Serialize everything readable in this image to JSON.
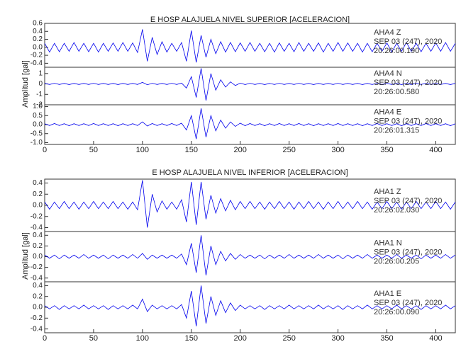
{
  "chart_data": [
    {
      "type": "line",
      "title": "E HOSP ALAJUELA NIVEL SUPERIOR [ACELERACION]",
      "ylabel": "Amplitud [gal]",
      "xlim": [
        0,
        420
      ],
      "xticks": [
        0,
        50,
        100,
        150,
        200,
        250,
        300,
        350,
        400
      ],
      "x": [
        0,
        5,
        10,
        15,
        20,
        25,
        30,
        35,
        40,
        45,
        50,
        55,
        60,
        65,
        70,
        75,
        80,
        85,
        90,
        95,
        100,
        105,
        110,
        115,
        120,
        125,
        130,
        135,
        140,
        145,
        150,
        155,
        160,
        165,
        170,
        175,
        180,
        185,
        190,
        195,
        200,
        205,
        210,
        215,
        220,
        225,
        230,
        235,
        240,
        245,
        250,
        255,
        260,
        265,
        270,
        275,
        280,
        285,
        290,
        295,
        300,
        305,
        310,
        315,
        320,
        325,
        330,
        335,
        340,
        345,
        350,
        355,
        360,
        365,
        370,
        375,
        380,
        385,
        390,
        395,
        400,
        405,
        410,
        415,
        420
      ],
      "series": [
        {
          "name": "AHA4 Z",
          "date": "SEP 03 (247), 2020",
          "time": "20:26:00.190",
          "color": "#0000ee",
          "ylim": [
            -0.5,
            0.6
          ],
          "yticks": [
            0.6,
            0.4,
            0.2,
            {
              "value": 0,
              "label": "0.0"
            },
            -0.2,
            -0.4
          ],
          "values": [
            0.1,
            -0.12,
            0.1,
            -0.11,
            0.1,
            -0.1,
            0.12,
            -0.1,
            0.1,
            -0.11,
            0.1,
            -0.12,
            0.1,
            -0.1,
            0.11,
            -0.1,
            0.12,
            -0.1,
            0.11,
            -0.13,
            0.45,
            -0.35,
            0.25,
            -0.18,
            0.14,
            -0.12,
            0.1,
            -0.1,
            0.12,
            -0.35,
            0.42,
            -0.38,
            0.3,
            -0.25,
            0.2,
            -0.16,
            0.14,
            -0.12,
            0.12,
            -0.11,
            0.11,
            -0.1,
            0.12,
            -0.1,
            0.1,
            -0.11,
            0.1,
            -0.12,
            0.11,
            -0.1,
            0.1,
            -0.11,
            0.12,
            -0.1,
            0.1,
            -0.1,
            0.11,
            -0.12,
            0.1,
            -0.1,
            0.12,
            -0.1,
            0.11,
            -0.1,
            0.1,
            -0.12,
            0.1,
            -0.11,
            0.1,
            -0.1,
            0.11,
            -0.12,
            0.1,
            -0.1,
            0.12,
            -0.1,
            0.1,
            -0.11,
            0.1,
            -0.1,
            0.11,
            -0.1,
            0.12,
            -0.1,
            0.1
          ]
        },
        {
          "name": "AHA4 N",
          "date": "SEP 03 (247), 2020",
          "time": "20:26:00.580",
          "color": "#0000ee",
          "ylim": [
            -2,
            1.6
          ],
          "yticks": [
            1,
            0,
            -1,
            -2
          ],
          "values": [
            0.05,
            -0.05,
            0.06,
            -0.05,
            0.05,
            -0.06,
            0.05,
            -0.05,
            0.05,
            -0.05,
            0.06,
            -0.05,
            0.05,
            -0.05,
            0.05,
            -0.06,
            0.05,
            -0.05,
            0.05,
            -0.05,
            0.15,
            -0.08,
            0.06,
            -0.05,
            0.05,
            -0.05,
            0.06,
            -0.05,
            0.08,
            -0.4,
            0.7,
            -1.3,
            1.5,
            -1.6,
            1.0,
            -0.6,
            0.4,
            -0.3,
            0.2,
            -0.15,
            0.08,
            -0.06,
            0.06,
            -0.05,
            0.05,
            -0.06,
            0.05,
            -0.05,
            0.06,
            -0.05,
            0.05,
            -0.05,
            0.06,
            -0.05,
            0.05,
            -0.06,
            0.05,
            -0.05,
            0.05,
            -0.05,
            0.06,
            -0.05,
            0.05,
            -0.05,
            0.05,
            -0.06,
            0.05,
            -0.05,
            0.06,
            -0.05,
            0.05,
            -0.05,
            0.05,
            -0.06,
            0.05,
            -0.05,
            0.05,
            -0.05,
            0.06,
            -0.05,
            0.05,
            -0.05,
            0.05,
            -0.06,
            0.05
          ]
        },
        {
          "name": "AHA4 E",
          "date": "SEP 03 (247), 2020",
          "time": "20:26:01.315",
          "color": "#0000ee",
          "ylim": [
            -1.1,
            1.1
          ],
          "yticks": [
            {
              "value": 1,
              "label": "1.0"
            },
            0.5,
            {
              "value": 0,
              "label": "0.0"
            },
            -0.5,
            {
              "value": -1,
              "label": "-1.0"
            }
          ],
          "values": [
            0.05,
            -0.05,
            0.06,
            -0.05,
            0.05,
            -0.06,
            0.05,
            -0.05,
            0.05,
            -0.05,
            0.06,
            -0.05,
            0.05,
            -0.05,
            0.05,
            -0.06,
            0.05,
            -0.05,
            0.05,
            -0.05,
            0.15,
            -0.08,
            0.06,
            -0.05,
            0.05,
            -0.05,
            0.06,
            -0.05,
            0.08,
            -0.3,
            0.5,
            -0.8,
            0.9,
            -0.7,
            0.5,
            -0.35,
            0.25,
            -0.2,
            0.15,
            -0.1,
            0.08,
            -0.06,
            0.06,
            -0.05,
            0.05,
            -0.06,
            0.05,
            -0.05,
            0.06,
            -0.05,
            0.05,
            -0.05,
            0.06,
            -0.05,
            0.05,
            -0.06,
            0.05,
            -0.05,
            0.05,
            -0.05,
            0.06,
            -0.05,
            0.05,
            -0.05,
            0.05,
            -0.06,
            0.05,
            -0.05,
            0.06,
            -0.05,
            0.05,
            -0.05,
            0.05,
            -0.06,
            0.05,
            -0.05,
            0.05,
            -0.05,
            0.06,
            -0.05,
            0.05,
            -0.05,
            0.05,
            -0.06,
            0.05
          ]
        }
      ]
    },
    {
      "type": "line",
      "title": "E HOSP ALAJUELA NIVEL INFERIOR [ACELERACION]",
      "ylabel": "Amplitud [gal]",
      "xlim": [
        0,
        420
      ],
      "xticks": [
        0,
        50,
        100,
        150,
        200,
        250,
        300,
        350,
        400
      ],
      "x": [
        0,
        5,
        10,
        15,
        20,
        25,
        30,
        35,
        40,
        45,
        50,
        55,
        60,
        65,
        70,
        75,
        80,
        85,
        90,
        95,
        100,
        105,
        110,
        115,
        120,
        125,
        130,
        135,
        140,
        145,
        150,
        155,
        160,
        165,
        170,
        175,
        180,
        185,
        190,
        195,
        200,
        205,
        210,
        215,
        220,
        225,
        230,
        235,
        240,
        245,
        250,
        255,
        260,
        265,
        270,
        275,
        280,
        285,
        290,
        295,
        300,
        305,
        310,
        315,
        320,
        325,
        330,
        335,
        340,
        345,
        350,
        355,
        360,
        365,
        370,
        375,
        380,
        385,
        390,
        395,
        400,
        405,
        410,
        415,
        420
      ],
      "series": [
        {
          "name": "AHA1 Z",
          "date": "SEP 03 (247), 2020",
          "time": "20:26:02.030",
          "color": "#0000ee",
          "ylim": [
            -0.47,
            0.47
          ],
          "yticks": [
            0.4,
            0.2,
            {
              "value": 0,
              "label": "0.0"
            },
            -0.2,
            -0.4
          ],
          "values": [
            0.06,
            -0.07,
            0.06,
            -0.06,
            0.07,
            -0.06,
            0.06,
            -0.07,
            0.06,
            -0.06,
            0.07,
            -0.06,
            0.06,
            -0.06,
            0.07,
            -0.06,
            0.06,
            -0.07,
            0.06,
            -0.08,
            0.45,
            -0.4,
            0.2,
            -0.12,
            0.08,
            -0.07,
            0.06,
            -0.07,
            0.1,
            -0.3,
            0.42,
            -0.35,
            0.42,
            -0.25,
            0.18,
            -0.14,
            0.12,
            -0.1,
            0.09,
            -0.08,
            0.07,
            -0.06,
            0.07,
            -0.06,
            0.06,
            -0.07,
            0.06,
            -0.06,
            0.07,
            -0.06,
            0.06,
            -0.07,
            0.06,
            -0.06,
            0.07,
            -0.06,
            0.06,
            -0.07,
            0.06,
            -0.06,
            0.07,
            -0.06,
            0.06,
            -0.06,
            0.07,
            -0.06,
            0.06,
            -0.07,
            0.06,
            -0.06,
            0.07,
            -0.06,
            0.06,
            -0.07,
            0.06,
            -0.06,
            0.07,
            -0.06,
            0.06,
            -0.06,
            0.07,
            -0.06,
            0.06,
            -0.07,
            0.06
          ]
        },
        {
          "name": "AHA1 N",
          "date": "SEP 03 (247), 2020",
          "time": "20:26:00.205",
          "color": "#0000ee",
          "ylim": [
            -0.47,
            0.47
          ],
          "yticks": [
            0.4,
            0.2,
            {
              "value": 0,
              "label": "0.0"
            },
            -0.2,
            -0.4
          ],
          "values": [
            0.03,
            -0.03,
            0.03,
            -0.04,
            0.03,
            -0.03,
            0.03,
            -0.03,
            0.04,
            -0.03,
            0.03,
            -0.03,
            0.03,
            -0.04,
            0.03,
            -0.03,
            0.03,
            -0.03,
            0.04,
            -0.03,
            0.06,
            -0.05,
            0.03,
            -0.03,
            0.03,
            -0.03,
            0.03,
            -0.03,
            0.05,
            -0.15,
            0.25,
            -0.3,
            0.4,
            -0.35,
            0.2,
            -0.15,
            0.1,
            -0.08,
            0.06,
            -0.05,
            0.04,
            -0.03,
            0.03,
            -0.03,
            0.03,
            -0.04,
            0.03,
            -0.03,
            0.03,
            -0.03,
            0.04,
            -0.03,
            0.03,
            -0.03,
            0.03,
            -0.03,
            0.04,
            -0.03,
            0.03,
            -0.03,
            0.03,
            -0.04,
            0.03,
            -0.03,
            0.03,
            -0.03,
            0.04,
            -0.03,
            0.03,
            -0.03,
            0.03,
            -0.03,
            0.04,
            -0.03,
            0.03,
            -0.03,
            0.03,
            -0.04,
            0.03,
            -0.03,
            0.03,
            -0.03,
            0.04,
            -0.03,
            0.03
          ]
        },
        {
          "name": "AHA1 E",
          "date": "SEP 03 (247), 2020",
          "time": "20:26:00.090",
          "color": "#0000ee",
          "ylim": [
            -0.47,
            0.47
          ],
          "yticks": [
            0.4,
            0.2,
            {
              "value": 0,
              "label": "0.0"
            },
            -0.2,
            -0.4
          ],
          "values": [
            0.03,
            -0.03,
            0.03,
            -0.04,
            0.03,
            -0.03,
            0.03,
            -0.03,
            0.04,
            -0.03,
            0.03,
            -0.03,
            0.03,
            -0.04,
            0.03,
            -0.03,
            0.03,
            -0.03,
            0.04,
            -0.03,
            0.15,
            -0.08,
            0.04,
            -0.03,
            0.03,
            -0.03,
            0.03,
            -0.03,
            0.05,
            -0.2,
            0.3,
            -0.35,
            0.4,
            -0.3,
            0.2,
            -0.15,
            0.12,
            -0.1,
            0.08,
            -0.06,
            0.04,
            -0.03,
            0.03,
            -0.03,
            0.03,
            -0.04,
            0.03,
            -0.03,
            0.03,
            -0.03,
            0.04,
            -0.03,
            0.03,
            -0.03,
            0.03,
            -0.03,
            0.04,
            -0.03,
            0.03,
            -0.03,
            0.03,
            -0.04,
            0.03,
            -0.03,
            0.03,
            -0.03,
            0.04,
            -0.03,
            0.03,
            -0.03,
            0.03,
            -0.03,
            0.04,
            -0.03,
            0.03,
            -0.03,
            0.03,
            -0.04,
            0.03,
            -0.03,
            0.03,
            -0.03,
            0.04,
            -0.03,
            0.03
          ]
        }
      ]
    }
  ]
}
